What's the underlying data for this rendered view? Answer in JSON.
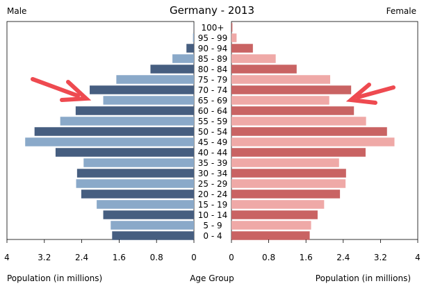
{
  "chart_data": {
    "type": "bar",
    "title": "Germany - 2013",
    "left_label": "Male",
    "right_label": "Female",
    "xlabel_left": "Population (in millions)",
    "xlabel_center": "Age Group",
    "xlabel_right": "Population (in millions)",
    "xlim": [
      0,
      4
    ],
    "ticks": [
      "4",
      "3.2",
      "2.4",
      "1.6",
      "0.8",
      "0",
      "0",
      "0.8",
      "1.6",
      "2.4",
      "3.2",
      "4"
    ],
    "categories": [
      "100+",
      "95 - 99",
      "90 - 94",
      "85 - 89",
      "80 - 84",
      "75 - 79",
      "70 - 74",
      "65 - 69",
      "60 - 64",
      "55 - 59",
      "50 - 54",
      "45 - 49",
      "40 - 44",
      "35 - 39",
      "30 - 34",
      "25 - 29",
      "20 - 24",
      "15 - 19",
      "10 - 14",
      "5 - 9",
      "0 - 4"
    ],
    "series": [
      {
        "name": "Male",
        "values": [
          0.003,
          0.02,
          0.16,
          0.46,
          0.93,
          1.66,
          2.23,
          1.94,
          2.53,
          2.86,
          3.41,
          3.61,
          2.96,
          2.36,
          2.5,
          2.52,
          2.41,
          2.08,
          1.94,
          1.78,
          1.75
        ]
      },
      {
        "name": "Female",
        "values": [
          0.02,
          0.11,
          0.46,
          0.95,
          1.4,
          2.12,
          2.57,
          2.1,
          2.63,
          2.89,
          3.34,
          3.5,
          2.88,
          2.31,
          2.46,
          2.45,
          2.33,
          1.99,
          1.85,
          1.71,
          1.68
        ]
      }
    ],
    "colors": {
      "male_dark": "#465e80",
      "male_light": "#8aa9c9",
      "female_dark": "#c96363",
      "female_light": "#efa9a7",
      "arrow": "#ee4a50"
    },
    "annotations": [
      "arrow-left-pointing-at-70-74",
      "arrow-right-pointing-at-70-74"
    ],
    "grid": false,
    "legend": "none"
  }
}
